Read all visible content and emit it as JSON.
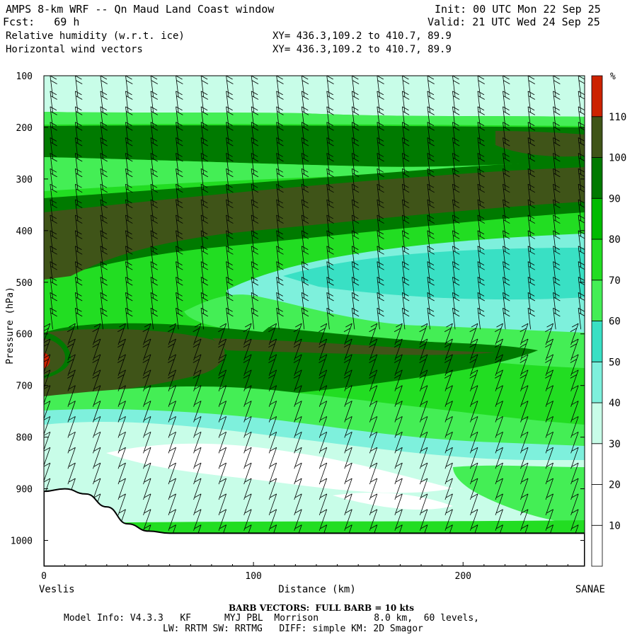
{
  "header": {
    "title": "AMPS 8-km WRF -- Qn Maud Land Coast window",
    "fcst": "Fcst:   69 h",
    "init": "Init: 00 UTC Mon 22 Sep 25",
    "valid": "Valid: 21 UTC Wed 24 Sep 25",
    "field1": "Relative humidity (w.r.t. ice)",
    "field2": "Horizontal wind vectors",
    "xy1": "XY= 436.3,109.2 to 410.7, 89.9",
    "xy2": "XY= 436.3,109.2 to 410.7, 89.9"
  },
  "chart_data": {
    "type": "heatmap",
    "title": "Relative humidity (w.r.t. ice) cross section with horizontal wind barbs",
    "xlabel": "Distance (km)",
    "ylabel": "Pressure (hPa)",
    "xlim": [
      0,
      258
    ],
    "ylim": [
      1050,
      100
    ],
    "x_ticks": [
      0,
      100,
      200
    ],
    "x_tick_labels": [
      "0",
      "100",
      "200"
    ],
    "y_ticks": [
      100,
      200,
      300,
      400,
      500,
      600,
      700,
      800,
      900,
      1000
    ],
    "y_tick_labels": [
      "100",
      "200",
      "300",
      "400",
      "500",
      "600",
      "700",
      "800",
      "900",
      "1000"
    ],
    "left_endpoint": "Veslis",
    "right_endpoint": "SANAE",
    "colorbar": {
      "unit": "%",
      "levels": [
        10,
        20,
        30,
        40,
        50,
        60,
        70,
        80,
        90,
        100,
        110
      ],
      "labels": [
        "10",
        "20",
        "30",
        "40",
        "50",
        "60",
        "70",
        "80",
        "90",
        "100",
        "110"
      ],
      "colors": [
        "#ffffff",
        "#ffffff",
        "#ffffff",
        "#c8fde8",
        "#7ef0dc",
        "#39e0c4",
        "#44ee55",
        "#22dd22",
        "#00bb00",
        "#007a00",
        "#3f5418",
        "#cc2200"
      ]
    },
    "contour_bands": [
      {
        "name": "upper-cyan",
        "rh": 35,
        "color": "#c8fde8"
      },
      {
        "name": "upper-green",
        "rh": 80,
        "color": "#22dd22"
      },
      {
        "name": "high-moist-300",
        "rh": 100,
        "color": "#3f5418"
      },
      {
        "name": "mid-dry-500",
        "rh": 55,
        "color": "#7ef0dc"
      },
      {
        "name": "moist-650",
        "rh": 95,
        "color": "#3f5418"
      },
      {
        "name": "low-dry-850",
        "rh": 25,
        "color": "#ffffff"
      }
    ],
    "terrain_pressure": [
      {
        "x": 0,
        "p": 905
      },
      {
        "x": 10,
        "p": 900
      },
      {
        "x": 20,
        "p": 910
      },
      {
        "x": 30,
        "p": 935
      },
      {
        "x": 40,
        "p": 968
      },
      {
        "x": 50,
        "p": 982
      },
      {
        "x": 60,
        "p": 986
      },
      {
        "x": 258,
        "p": 986
      }
    ],
    "barb_columns_x": [
      3,
      15,
      27,
      39,
      51,
      63,
      75,
      87,
      99,
      111,
      123,
      135,
      147,
      159,
      171,
      183,
      195,
      207,
      219,
      231,
      243,
      255
    ],
    "barb_levels_p": [
      100,
      130,
      160,
      190,
      220,
      250,
      280,
      310,
      340,
      370,
      400,
      430,
      460,
      490,
      520,
      550,
      580,
      610,
      640,
      670,
      700,
      730,
      760,
      790,
      820,
      850,
      880,
      910,
      940,
      970
    ]
  },
  "footer": {
    "barb_note": "BARB VECTORS:  FULL BARB = 10 kts",
    "model_line": "Model Info: V4.3.3   KF      MYJ PBL  Morrison          8.0 km,  60 levels,",
    "rad_line": "LW: RRTM SW: RRTMG   DIFF: simple KM: 2D Smagor"
  }
}
